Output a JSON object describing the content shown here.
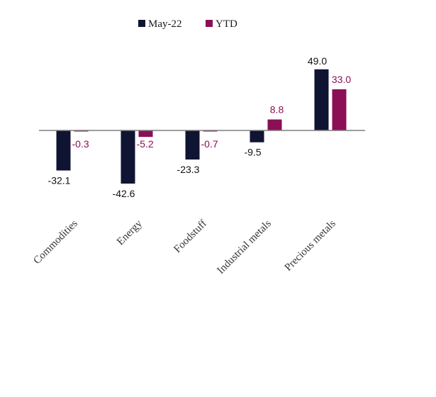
{
  "chart_data": {
    "type": "bar",
    "title": "",
    "xlabel": "",
    "ylabel": "",
    "categories": [
      "Commodities",
      "Energy",
      "Foodstuff",
      "Industrial metals",
      "Precious metals"
    ],
    "series": [
      {
        "name": "May-22",
        "color": "#101433",
        "values": [
          -32.1,
          -42.6,
          -23.3,
          -9.5,
          49.0
        ],
        "labels": [
          "-32.1",
          "-42.6",
          "-23.3",
          "-9.5",
          "49.0"
        ]
      },
      {
        "name": "YTD",
        "color": "#8b0f55",
        "values": [
          -0.3,
          -5.2,
          -0.7,
          8.8,
          33.0
        ],
        "labels": [
          "-0.3",
          "-5.2",
          "-0.7",
          "8.8",
          "33.0"
        ]
      }
    ],
    "ylim": [
      -50,
      50
    ],
    "grid": false,
    "legend": "top-center"
  }
}
